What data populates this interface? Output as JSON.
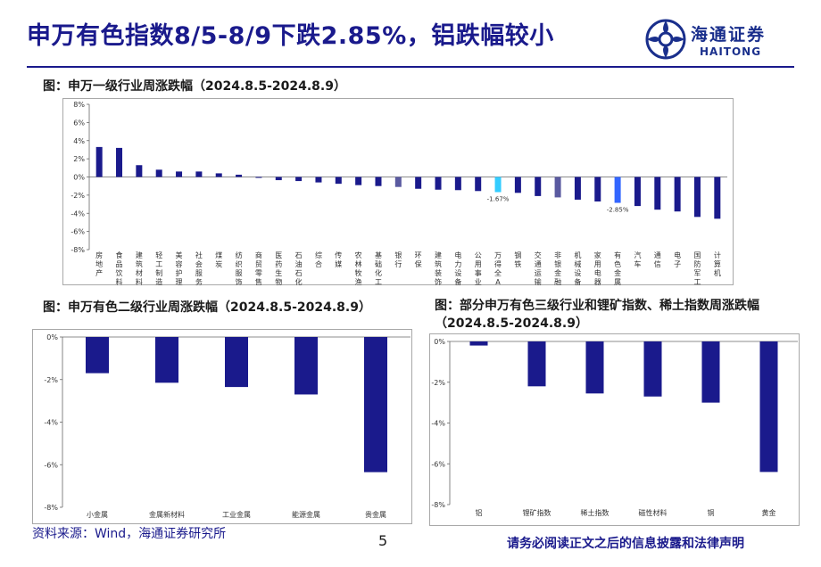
{
  "header": {
    "title": "申万有色指数8/5-8/9下跌2.85%，铝跌幅较小",
    "logo_cn": "海通证券",
    "logo_en": "HAITONG"
  },
  "colors": {
    "bar": "#1a1a8c",
    "highlight_cyan": "#33ccff",
    "highlight_blue": "#3366ff",
    "highlight_slate": "#5a5aa0"
  },
  "chart_data": [
    {
      "type": "bar",
      "title": "图：申万一级行业周涨跌幅（2024.8.5-2024.8.9）",
      "categories": [
        "房地产",
        "食品饮料",
        "建筑材料",
        "轻工制造",
        "美容护理",
        "社会服务",
        "煤炭",
        "纺织服饰",
        "商贸零售",
        "医药生物",
        "石油石化",
        "综合",
        "传媒",
        "农林牧渔",
        "基础化工",
        "银行",
        "环保",
        "建筑装饰",
        "电力设备",
        "公用事业",
        "万得全A",
        "钢铁",
        "交通运输",
        "非银金融",
        "机械设备",
        "家用电器",
        "有色金属",
        "汽车",
        "通信",
        "电子",
        "国防军工",
        "计算机"
      ],
      "values": [
        3.3,
        3.2,
        1.3,
        0.8,
        0.6,
        0.6,
        0.4,
        0.25,
        -0.1,
        -0.35,
        -0.45,
        -0.6,
        -0.75,
        -0.9,
        -1.0,
        -1.1,
        -1.3,
        -1.4,
        -1.45,
        -1.55,
        -1.67,
        -1.75,
        -2.1,
        -2.25,
        -2.5,
        -2.7,
        -2.85,
        -3.2,
        -3.6,
        -3.8,
        -4.4,
        -4.6
      ],
      "highlight": {
        "万得全A": "highlight_cyan",
        "有色金属": "highlight_blue",
        "银行": "highlight_slate",
        "非银金融": "highlight_slate"
      },
      "data_labels": {
        "万得全A": "-1.67%",
        "有色金属": "-2.85%"
      },
      "yticks": [
        "-8%",
        "-6%",
        "-4%",
        "-2%",
        "0%",
        "2%",
        "4%",
        "6%",
        "8%"
      ],
      "ylim": [
        -8,
        8
      ]
    },
    {
      "type": "bar",
      "title": "图：申万有色二级行业周涨跌幅（2024.8.5-2024.8.9）",
      "categories": [
        "小金属",
        "金属新材料",
        "工业金属",
        "能源金属",
        "贵金属"
      ],
      "values": [
        -1.7,
        -2.15,
        -2.35,
        -2.7,
        -6.35
      ],
      "yticks": [
        "-8%",
        "-6%",
        "-4%",
        "-2%",
        "0%"
      ],
      "ylim": [
        -8,
        0
      ]
    },
    {
      "type": "bar",
      "title": "图：部分申万有色三级行业和锂矿指数、稀土指数周涨跌幅（2024.8.5-2024.8.9）",
      "categories": [
        "铝",
        "锂矿指数",
        "稀土指数",
        "磁性材料",
        "铜",
        "黄金"
      ],
      "values": [
        -0.2,
        -2.2,
        -2.55,
        -2.7,
        -3.0,
        -6.4
      ],
      "yticks": [
        "-8%",
        "-6%",
        "-4%",
        "-2%",
        "0%"
      ],
      "ylim": [
        -8,
        0
      ]
    }
  ],
  "footer": {
    "source": "资料来源：Wind，海通证券研究所",
    "page": "5",
    "disclaimer": "请务必阅读正文之后的信息披露和法律声明"
  }
}
